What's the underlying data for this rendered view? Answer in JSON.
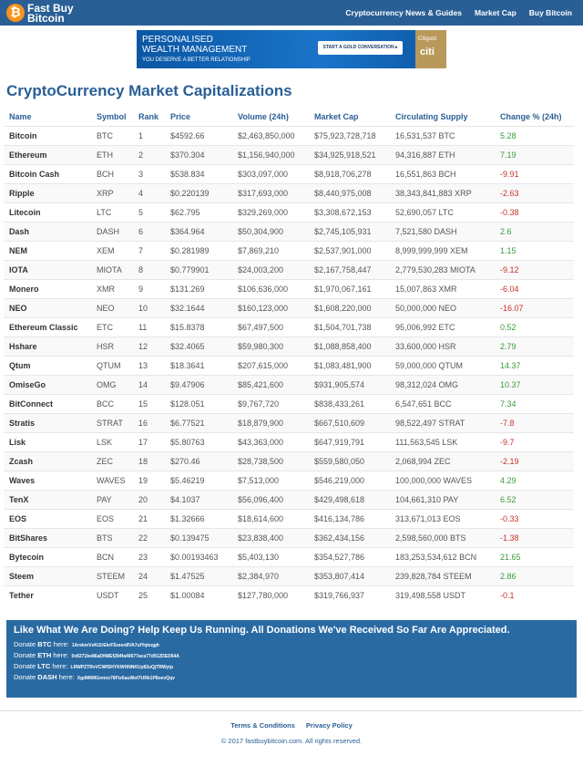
{
  "header": {
    "logo": [
      "Fast Buy",
      "Bitcoin"
    ],
    "nav": [
      "Cryptocurrency News & Guides",
      "Market Cap",
      "Buy Bitcoin"
    ]
  },
  "ad": {
    "lines": [
      "PERSONALISED",
      "WEALTH MANAGEMENT",
      "YOU DESERVE A BETTER RELATIONSHIP"
    ],
    "button": "START A GOLD CONVERSATION ▸",
    "brand": "Citigold",
    "logo": "citi"
  },
  "title": "CryptoCurrency Market Capitalizations",
  "table": {
    "columns": [
      "Name",
      "Symbol",
      "Rank",
      "Price",
      "Volume (24h)",
      "Market Cap",
      "Circulating Supply",
      "Change % (24h)"
    ],
    "rows": [
      [
        "Bitcoin",
        "BTC",
        "1",
        "$4592.66",
        "$2,463,850,000",
        "$75,923,728,718",
        "16,531,537 BTC",
        "5.28"
      ],
      [
        "Ethereum",
        "ETH",
        "2",
        "$370.304",
        "$1,156,940,000",
        "$34,925,918,521",
        "94,316,887 ETH",
        "7.19"
      ],
      [
        "Bitcoin Cash",
        "BCH",
        "3",
        "$538.834",
        "$303,097,000",
        "$8,918,706,278",
        "16,551,863 BCH",
        "-9.91"
      ],
      [
        "Ripple",
        "XRP",
        "4",
        "$0.220139",
        "$317,693,000",
        "$8,440,975,008",
        "38,343,841,883 XRP",
        "-2.63"
      ],
      [
        "Litecoin",
        "LTC",
        "5",
        "$62.795",
        "$329,269,000",
        "$3,308,672,153",
        "52,690,057 LTC",
        "-0.38"
      ],
      [
        "Dash",
        "DASH",
        "6",
        "$364.964",
        "$50,304,900",
        "$2,745,105,931",
        "7,521,580 DASH",
        "2.6"
      ],
      [
        "NEM",
        "XEM",
        "7",
        "$0.281989",
        "$7,869,210",
        "$2,537,901,000",
        "8,999,999,999 XEM",
        "1.15"
      ],
      [
        "IOTA",
        "MIOTA",
        "8",
        "$0.779901",
        "$24,003,200",
        "$2,167,758,447",
        "2,779,530,283 MIOTA",
        "-9.12"
      ],
      [
        "Monero",
        "XMR",
        "9",
        "$131.269",
        "$106,636,000",
        "$1,970,067,161",
        "15,007,863 XMR",
        "-6.04"
      ],
      [
        "NEO",
        "NEO",
        "10",
        "$32.1644",
        "$160,123,000",
        "$1,608,220,000",
        "50,000,000 NEO",
        "-16.07"
      ],
      [
        "Ethereum Classic",
        "ETC",
        "11",
        "$15.8378",
        "$67,497,500",
        "$1,504,701,738",
        "95,006,992 ETC",
        "0.52"
      ],
      [
        "Hshare",
        "HSR",
        "12",
        "$32.4065",
        "$59,980,300",
        "$1,088,858,400",
        "33,600,000 HSR",
        "2.79"
      ],
      [
        "Qtum",
        "QTUM",
        "13",
        "$18.3641",
        "$207,615,000",
        "$1,083,481,900",
        "59,000,000 QTUM",
        "14.37"
      ],
      [
        "OmiseGo",
        "OMG",
        "14",
        "$9.47906",
        "$85,421,600",
        "$931,905,574",
        "98,312,024 OMG",
        "10.37"
      ],
      [
        "BitConnect",
        "BCC",
        "15",
        "$128.051",
        "$9,767,720",
        "$838,433,261",
        "6,547,651 BCC",
        "7.34"
      ],
      [
        "Stratis",
        "STRAT",
        "16",
        "$6.77521",
        "$18,879,900",
        "$667,510,609",
        "98,522,497 STRAT",
        "-7.8"
      ],
      [
        "Lisk",
        "LSK",
        "17",
        "$5.80763",
        "$43,363,000",
        "$647,919,791",
        "111,563,545 LSK",
        "-9.7"
      ],
      [
        "Zcash",
        "ZEC",
        "18",
        "$270.46",
        "$28,738,500",
        "$559,580,050",
        "2,068,994 ZEC",
        "-2.19"
      ],
      [
        "Waves",
        "WAVES",
        "19",
        "$5.46219",
        "$7,513,000",
        "$546,219,000",
        "100,000,000 WAVES",
        "4.29"
      ],
      [
        "TenX",
        "PAY",
        "20",
        "$4.1037",
        "$56,096,400",
        "$429,498,618",
        "104,661,310 PAY",
        "6.52"
      ],
      [
        "EOS",
        "EOS",
        "21",
        "$1.32666",
        "$18,614,600",
        "$416,134,786",
        "313,671,013 EOS",
        "-0.33"
      ],
      [
        "BitShares",
        "BTS",
        "22",
        "$0.139475",
        "$23,838,400",
        "$362,434,156",
        "2,598,560,000 BTS",
        "-1.38"
      ],
      [
        "Bytecoin",
        "BCN",
        "23",
        "$0.00193463",
        "$5,403,130",
        "$354,527,786",
        "183,253,534,612 BCN",
        "21.65"
      ],
      [
        "Steem",
        "STEEM",
        "24",
        "$1.47525",
        "$2,384,970",
        "$353,807,414",
        "239,828,784 STEEM",
        "2.86"
      ],
      [
        "Tether",
        "USDT",
        "25",
        "$1.00084",
        "$127,780,000",
        "$319,766,937",
        "319,498,558 USDT",
        "-0.1"
      ]
    ]
  },
  "donate": {
    "heading": "Like What We Are Doing? Help Keep Us Running. All Donations We've Received So Far Are Appreciated.",
    "prefix": "Donate",
    "suffix": "here:",
    "items": [
      {
        "coin": "BTC",
        "address": "1ArekmVvKiZrEkrF5zeen8VA7ufYqtsqgh"
      },
      {
        "coin": "ETH",
        "address": "0x8271be86aDf48Ef284fa40677aca77d912DED64A"
      },
      {
        "coin": "LTC",
        "address": "LRWPZTRvVCWfSHYKWHNNKUy82uQjTRWytp"
      },
      {
        "coin": "DASH",
        "address": "XgdM6MGnmrz78Ftz6auWof7URk1P8oevQqv"
      }
    ]
  },
  "footer": {
    "links": [
      "Terms & Conditions",
      "Privacy Policy"
    ],
    "copyright": "© 2017 fastbuybitcoin.com. All rights reserved."
  }
}
